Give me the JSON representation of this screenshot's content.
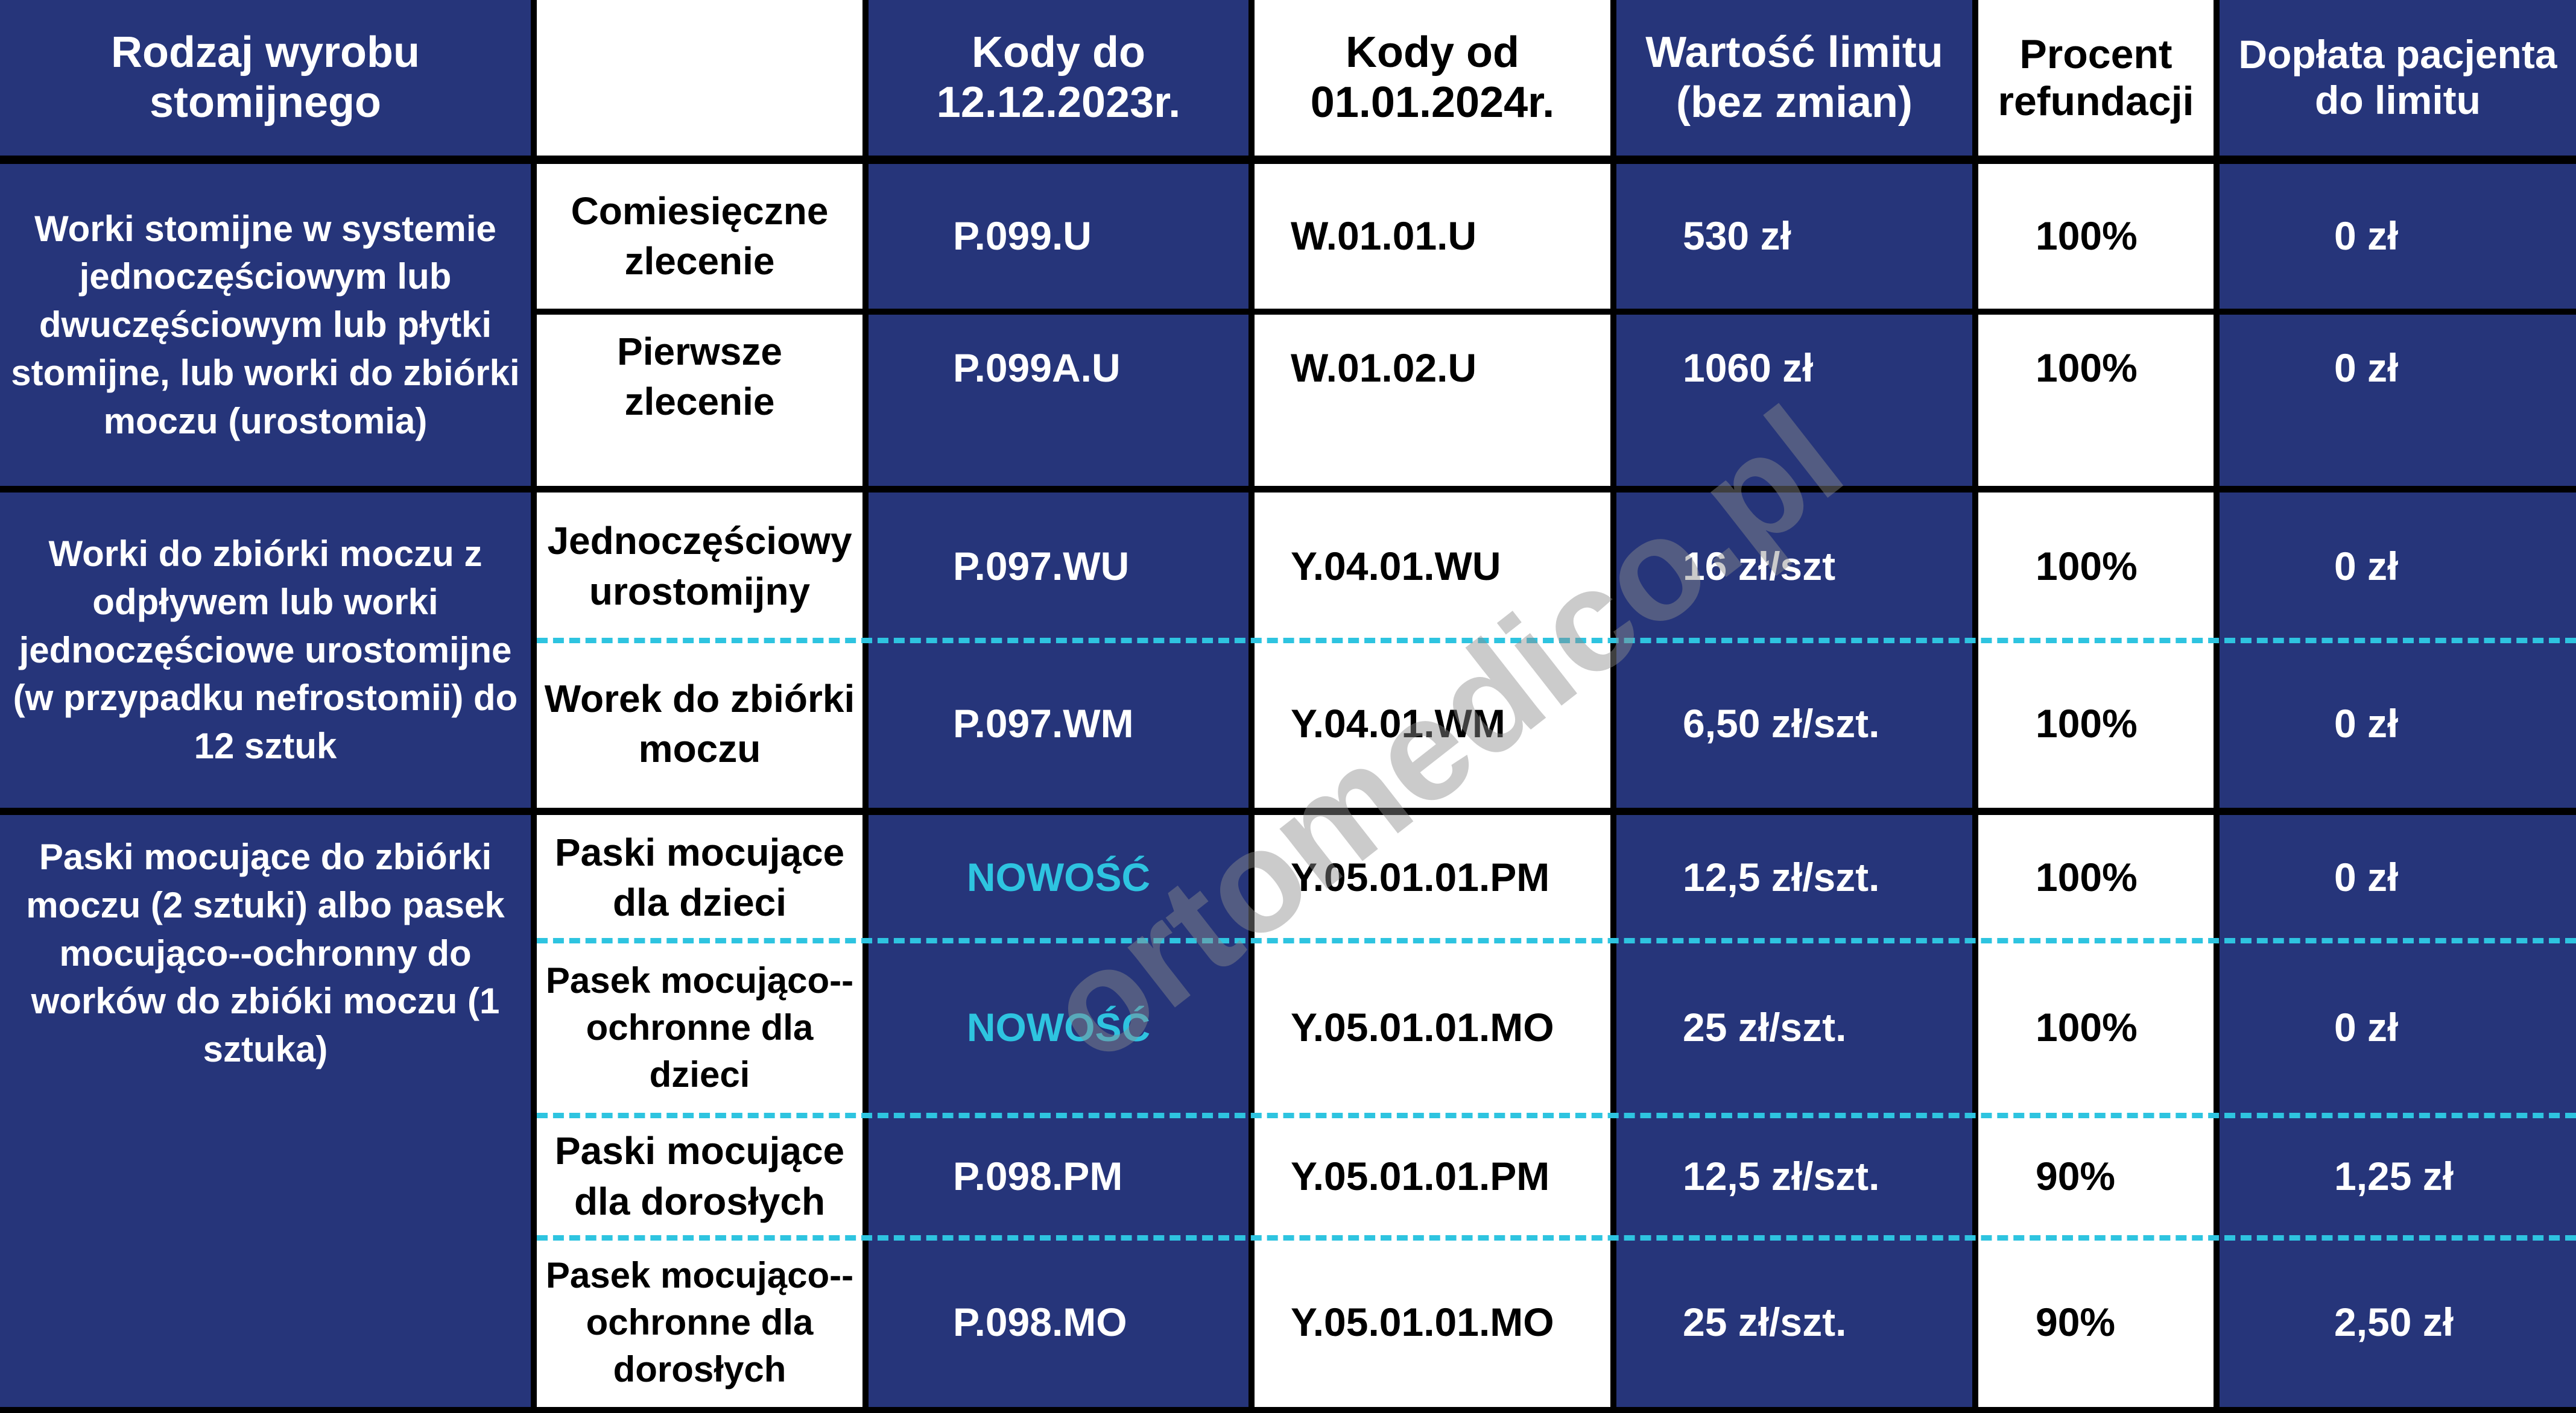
{
  "colors": {
    "navy": "#26357a",
    "accent": "#2ec4e0",
    "white": "#ffffff",
    "border": "#000000"
  },
  "header": {
    "type": "Rodzaj wyrobu stomijnego",
    "sub": "",
    "old_codes": "Kody do 12.12.2023r.",
    "new_codes": "Kody od 01.01.2024r.",
    "limit": "Wartość limitu (bez zmian)",
    "percent": "Procent refundacji",
    "copay": "Dopłata pacjenta do limitu"
  },
  "groups": [
    {
      "label": "Worki stomijne w systemie jednoczęściowym lub dwuczęściowym lub płytki stomijne, lub worki do zbiórki moczu (urostomia)"
    },
    {
      "label": "Worki do zbiórki moczu z odpływem lub worki jednoczęściowe urostomijne (w przypadku nefrostomii) do 12 sztuk"
    },
    {
      "label": "Paski mocujące do zbiórki moczu (2 sztuki) albo pasek mocująco--ochronny do worków do zbióki moczu (1 sztuka)"
    }
  ],
  "rows": [
    {
      "sub": "Comiesięczne zlecenie",
      "old": "P.099.U",
      "new": "W.01.01.U",
      "limit": "530 zł",
      "percent": "100%",
      "copay": "0 zł"
    },
    {
      "sub": "Pierwsze zlecenie",
      "old": "P.099A.U",
      "new": "W.01.02.U",
      "limit": "1060 zł",
      "percent": "100%",
      "copay": "0 zł"
    },
    {
      "sub": "Jednoczęściowy urostomijny",
      "old": "P.097.WU",
      "new": "Y.04.01.WU",
      "limit": "16 zł/szt",
      "percent": "100%",
      "copay": "0 zł"
    },
    {
      "sub": "Worek do zbiórki moczu",
      "old": "P.097.WM",
      "new": "Y.04.01.WM",
      "limit": "6,50 zł/szt.",
      "percent": "100%",
      "copay": "0 zł"
    },
    {
      "sub": "Paski mocujące dla dzieci",
      "old": "NOWOŚĆ",
      "new": "Y.05.01.01.PM",
      "limit": "12,5 zł/szt.",
      "percent": "100%",
      "copay": "0 zł"
    },
    {
      "sub": "Pasek mocująco--ochronne dla dzieci",
      "old": "NOWOŚĆ",
      "new": "Y.05.01.01.MO",
      "limit": "25 zł/szt.",
      "percent": "100%",
      "copay": "0 zł"
    },
    {
      "sub": "Paski mocujące dla dorosłych",
      "old": "P.098.PM",
      "new": "Y.05.01.01.PM",
      "limit": "12,5 zł/szt.",
      "percent": "90%",
      "copay": "1,25 zł"
    },
    {
      "sub": "Pasek mocująco--ochronne dla dorosłych",
      "old": "P.098.MO",
      "new": "Y.05.01.01.MO",
      "limit": "25 zł/szt.",
      "percent": "90%",
      "copay": "2,50 zł"
    }
  ],
  "watermark": "ortomedico.pl"
}
